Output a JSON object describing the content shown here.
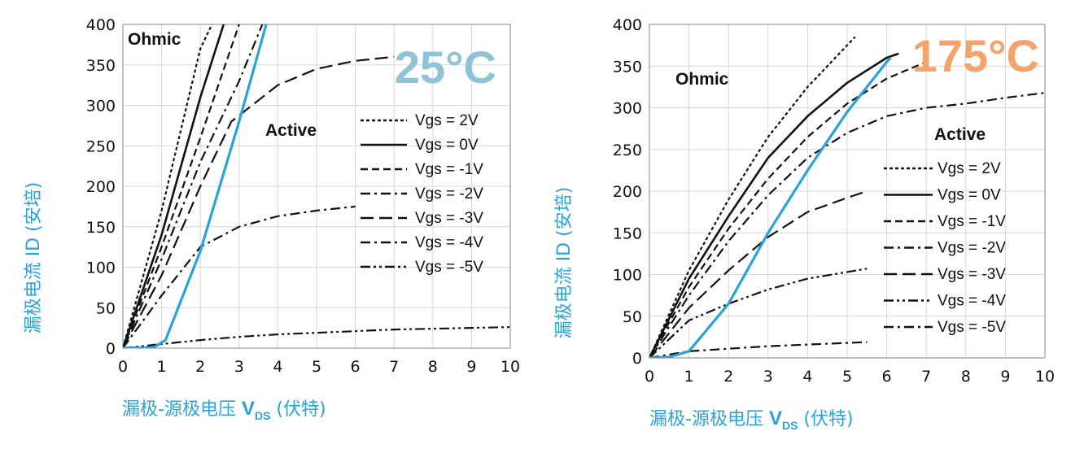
{
  "chart_data": [
    {
      "type": "line",
      "temperature_label": "25°C",
      "temperature_color": "#8fc3d6",
      "region_labels": {
        "ohmic": "Ohmic",
        "active": "Active"
      },
      "xlabel": {
        "prefix": "漏极-源极电压 ",
        "symbol": "V",
        "subscript": "DS",
        "suffix": " (伏特)"
      },
      "ylabel": "漏极电流 ID (安培)",
      "xlim": [
        0,
        10
      ],
      "ylim": [
        0,
        400
      ],
      "x_ticks": [
        "0",
        "1",
        "2",
        "3",
        "4",
        "5",
        "6",
        "7",
        "8",
        "9",
        "10"
      ],
      "y_ticks": [
        "0",
        "50",
        "100",
        "150",
        "200",
        "250",
        "300",
        "350",
        "400"
      ],
      "grid": true,
      "legend_position": "right",
      "series": [
        {
          "name": "Vgs = 2V",
          "dash": "short-dash",
          "values": [
            [
              0,
              0
            ],
            [
              1,
              170
            ],
            [
              2,
              370
            ],
            [
              2.3,
              400
            ]
          ]
        },
        {
          "name": "Vgs = 0V",
          "dash": "solid",
          "values": [
            [
              0,
              0
            ],
            [
              1,
              140
            ],
            [
              2,
              310
            ],
            [
              2.6,
              400
            ]
          ]
        },
        {
          "name": "Vgs = -1V",
          "dash": "dash",
          "values": [
            [
              0,
              0
            ],
            [
              1,
              125
            ],
            [
              2,
              260
            ],
            [
              3,
              400
            ]
          ]
        },
        {
          "name": "Vgs = -2V",
          "dash": "dash-dot",
          "values": [
            [
              0,
              0
            ],
            [
              1,
              110
            ],
            [
              2,
              230
            ],
            [
              3,
              330
            ],
            [
              3.6,
              400
            ]
          ]
        },
        {
          "name": "Vgs = -3V",
          "dash": "long-dash",
          "values": [
            [
              0,
              0
            ],
            [
              1,
              90
            ],
            [
              2,
              200
            ],
            [
              2.8,
              280
            ],
            [
              4,
              325
            ],
            [
              5,
              345
            ],
            [
              6,
              355
            ],
            [
              7,
              360
            ]
          ]
        },
        {
          "name": "Vgs = -4V",
          "dash": "dash-dot",
          "values": [
            [
              0,
              0
            ],
            [
              1,
              65
            ],
            [
              2,
              125
            ],
            [
              3,
              150
            ],
            [
              4,
              163
            ],
            [
              5,
              170
            ],
            [
              6,
              175
            ]
          ]
        },
        {
          "name": "Vgs = -5V",
          "dash": "dash-dot-dot",
          "values": [
            [
              0,
              0
            ],
            [
              1,
              5
            ],
            [
              2,
              10
            ],
            [
              3,
              14
            ],
            [
              4,
              17
            ],
            [
              5,
              19
            ],
            [
              6,
              21
            ],
            [
              7,
              23
            ],
            [
              8,
              24
            ],
            [
              9,
              25
            ],
            [
              10,
              26
            ]
          ]
        },
        {
          "name": "",
          "color": "#2aa3d8",
          "dash": "solid",
          "values": [
            [
              0,
              0
            ],
            [
              0.8,
              1
            ],
            [
              1.1,
              10
            ],
            [
              2,
              120
            ],
            [
              3,
              280
            ],
            [
              3.7,
              400
            ]
          ]
        }
      ]
    },
    {
      "type": "line",
      "temperature_label": "175°C",
      "temperature_color": "#f2a46a",
      "region_labels": {
        "ohmic": "Ohmic",
        "active": "Active"
      },
      "xlabel": {
        "prefix": "漏极-源极电压 ",
        "symbol": "V",
        "subscript": "DS",
        "suffix": " (伏特)"
      },
      "ylabel": "漏极电流 ID (安培)",
      "xlim": [
        0,
        10
      ],
      "ylim": [
        0,
        400
      ],
      "x_ticks": [
        "0",
        "1",
        "2",
        "3",
        "4",
        "5",
        "6",
        "7",
        "8",
        "9",
        "10"
      ],
      "y_ticks": [
        "0",
        "50",
        "100",
        "150",
        "200",
        "250",
        "300",
        "350",
        "400"
      ],
      "grid": true,
      "legend_position": "right",
      "series": [
        {
          "name": "Vgs = 2V",
          "dash": "short-dash",
          "values": [
            [
              0,
              0
            ],
            [
              1,
              105
            ],
            [
              2,
              190
            ],
            [
              3,
              265
            ],
            [
              4,
              325
            ],
            [
              5,
              375
            ],
            [
              5.2,
              385
            ]
          ]
        },
        {
          "name": "Vgs = 0V",
          "dash": "solid",
          "values": [
            [
              0,
              0
            ],
            [
              1,
              95
            ],
            [
              2,
              170
            ],
            [
              3,
              240
            ],
            [
              4,
              290
            ],
            [
              5,
              330
            ],
            [
              6,
              360
            ],
            [
              6.3,
              365
            ]
          ]
        },
        {
          "name": "Vgs = -1V",
          "dash": "dash",
          "values": [
            [
              0,
              0
            ],
            [
              1,
              85
            ],
            [
              2,
              155
            ],
            [
              3,
              215
            ],
            [
              4,
              265
            ],
            [
              5,
              305
            ],
            [
              6,
              335
            ],
            [
              7,
              355
            ]
          ]
        },
        {
          "name": "Vgs = -2V",
          "dash": "dash-dot",
          "values": [
            [
              0,
              0
            ],
            [
              1,
              75
            ],
            [
              2,
              140
            ],
            [
              3,
              195
            ],
            [
              4,
              240
            ],
            [
              5,
              270
            ],
            [
              6,
              290
            ],
            [
              7,
              300
            ],
            [
              8,
              305
            ],
            [
              9,
              312
            ],
            [
              10,
              318
            ]
          ]
        },
        {
          "name": "Vgs = -3V",
          "dash": "long-dash",
          "values": [
            [
              0,
              0
            ],
            [
              1,
              60
            ],
            [
              2,
              105
            ],
            [
              3,
              145
            ],
            [
              4,
              175
            ],
            [
              5,
              192
            ],
            [
              5.5,
              200
            ]
          ]
        },
        {
          "name": "Vgs = -4V",
          "dash": "dash-dot-dot",
          "values": [
            [
              0,
              0
            ],
            [
              1,
              45
            ],
            [
              2,
              65
            ],
            [
              3,
              82
            ],
            [
              4,
              95
            ],
            [
              5,
              103
            ],
            [
              5.5,
              107
            ]
          ]
        },
        {
          "name": "Vgs = -5V",
          "dash": "dash-dot",
          "values": [
            [
              0,
              0
            ],
            [
              1,
              8
            ],
            [
              2,
              11
            ],
            [
              3,
              14
            ],
            [
              4,
              16
            ],
            [
              5,
              18
            ],
            [
              5.5,
              19
            ]
          ]
        },
        {
          "name": "",
          "color": "#2aa3d8",
          "dash": "solid",
          "values": [
            [
              0,
              0
            ],
            [
              0.5,
              1
            ],
            [
              1,
              8
            ],
            [
              2,
              65
            ],
            [
              3,
              150
            ],
            [
              4,
              225
            ],
            [
              5,
              295
            ],
            [
              6,
              355
            ],
            [
              6.1,
              360
            ]
          ]
        }
      ]
    }
  ]
}
